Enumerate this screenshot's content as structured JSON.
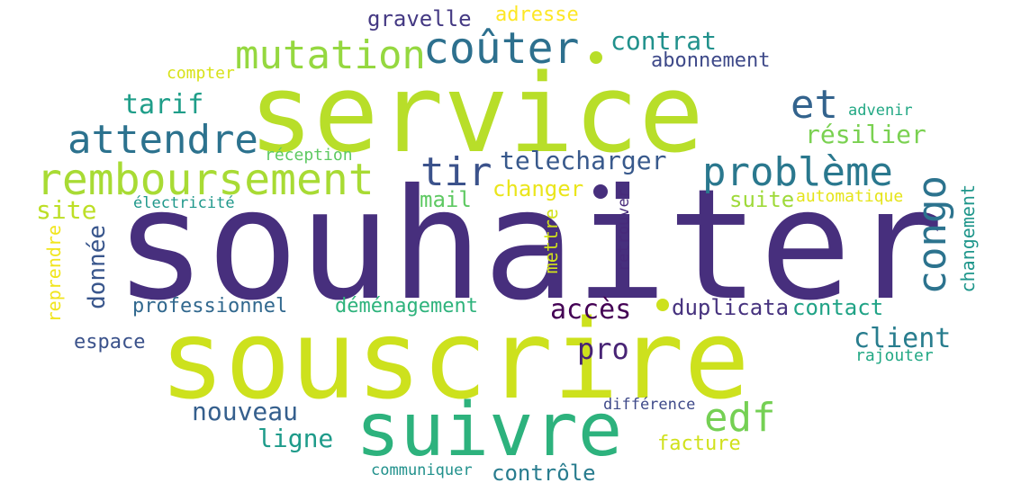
{
  "words": [
    {
      "text": "souhaiter",
      "color": "#472f7d"
    },
    {
      "text": "service",
      "color": "#b8de29"
    },
    {
      "text": "souscrire",
      "color": "#cde11d"
    },
    {
      "text": "suivre",
      "color": "#2db27d"
    },
    {
      "text": "remboursement",
      "color": "#a8db34"
    },
    {
      "text": "coûter",
      "color": "#2d708e"
    },
    {
      "text": "mutation",
      "color": "#95d840"
    },
    {
      "text": "attendre",
      "color": "#2c728e"
    },
    {
      "text": "problème",
      "color": "#2a788e"
    },
    {
      "text": "tir",
      "color": "#3b528b"
    },
    {
      "text": "congo",
      "color": "#2c738e"
    },
    {
      "text": "edf",
      "color": "#75d054"
    },
    {
      "text": "et",
      "color": "#33638d"
    },
    {
      "text": "telecharger",
      "color": "#38598c"
    },
    {
      "text": "contrat",
      "color": "#21918c"
    },
    {
      "text": "abonnement",
      "color": "#3e4989"
    },
    {
      "text": "tarif",
      "color": "#1f9e89"
    },
    {
      "text": "résilier",
      "color": "#7ad151"
    },
    {
      "text": "gravelle",
      "color": "#443983"
    },
    {
      "text": "adresse",
      "color": "#fde725"
    },
    {
      "text": "compter",
      "color": "#d8e219"
    },
    {
      "text": "advenir",
      "color": "#22a884"
    },
    {
      "text": "réception",
      "color": "#5ec962"
    },
    {
      "text": "site",
      "color": "#bddf26"
    },
    {
      "text": "électricité",
      "color": "#1f988b"
    },
    {
      "text": "mail",
      "color": "#5ec962"
    },
    {
      "text": "changer",
      "color": "#eae51a"
    },
    {
      "text": "suite",
      "color": "#9fda3a"
    },
    {
      "text": "automatique",
      "color": "#e5e419"
    },
    {
      "text": "donnée",
      "color": "#39568c"
    },
    {
      "text": "reprendre",
      "color": "#f1e51d"
    },
    {
      "text": "mettre",
      "color": "#d2e21b"
    },
    {
      "text": "retrouver",
      "color": "#472a7a"
    },
    {
      "text": "changement",
      "color": "#1f968b"
    },
    {
      "text": "professionnel",
      "color": "#31688e"
    },
    {
      "text": "déménagement",
      "color": "#2eb37c"
    },
    {
      "text": "accès",
      "color": "#440154"
    },
    {
      "text": "duplicata",
      "color": "#46327e"
    },
    {
      "text": "contact",
      "color": "#20a386"
    },
    {
      "text": "client",
      "color": "#287d8e"
    },
    {
      "text": "espace",
      "color": "#3b528b"
    },
    {
      "text": "pro",
      "color": "#482475"
    },
    {
      "text": "rajouter",
      "color": "#22a884"
    },
    {
      "text": "nouveau",
      "color": "#355f8d"
    },
    {
      "text": "différence",
      "color": "#3e4989"
    },
    {
      "text": "ligne",
      "color": "#1e9b8a"
    },
    {
      "text": "facture",
      "color": "#d0e11c"
    },
    {
      "text": "communiquer",
      "color": "#21918c"
    },
    {
      "text": "contrôle",
      "color": "#287c8e"
    }
  ]
}
